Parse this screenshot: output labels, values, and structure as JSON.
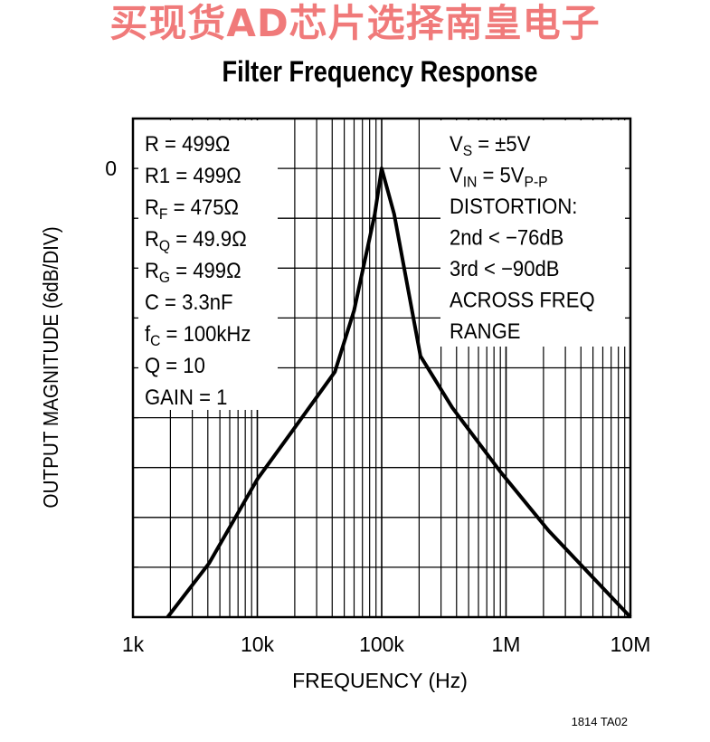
{
  "watermark": "买现货AD芯片选择南皇电子",
  "footer_code": "1814 TA02",
  "chart_data": {
    "type": "line",
    "title": "Filter Frequency Response",
    "xlabel": "FREQUENCY (Hz)",
    "ylabel": "OUTPUT MAGNITUDE (6dB/DIV)",
    "xscale": "log",
    "xlim": [
      1000,
      10000000
    ],
    "ylim": [
      -54,
      6
    ],
    "y_div_db": 6,
    "grid": true,
    "x_ticks": [
      {
        "value": 1000,
        "label": "1k"
      },
      {
        "value": 10000,
        "label": "10k"
      },
      {
        "value": 100000,
        "label": "100k"
      },
      {
        "value": 1000000,
        "label": "1M"
      },
      {
        "value": 10000000,
        "label": "10M"
      }
    ],
    "y_ticks": [
      {
        "value": 0,
        "label": "0"
      }
    ],
    "series": [
      {
        "name": "Output magnitude",
        "x": [
          1900,
          4100,
          10000,
          20000,
          42000,
          60000,
          88000,
          100000,
          126000,
          205000,
          370000,
          910000,
          2200000,
          5500000,
          10000000
        ],
        "y": [
          -54,
          -47.5,
          -37.4,
          -31.2,
          -24.5,
          -17.1,
          -5.5,
          0,
          -5.5,
          -22.6,
          -28.8,
          -36.6,
          -43.6,
          -49.9,
          -54
        ]
      }
    ],
    "annotations_left": [
      {
        "main": "R = 499Ω",
        "sub": "",
        "rest": ""
      },
      {
        "main": "R1 = 499Ω",
        "sub": "",
        "rest": ""
      },
      {
        "main": "R",
        "sub": "F",
        "rest": " = 475Ω"
      },
      {
        "main": "R",
        "sub": "Q",
        "rest": " = 49.9Ω"
      },
      {
        "main": "R",
        "sub": "G",
        "rest": " = 499Ω"
      },
      {
        "main": "C = 3.3nF",
        "sub": "",
        "rest": ""
      },
      {
        "main": "f",
        "sub": "C",
        "rest": " = 100kHz"
      },
      {
        "main": "Q = 10",
        "sub": "",
        "rest": ""
      },
      {
        "main": "GAIN = 1",
        "sub": "",
        "rest": ""
      }
    ],
    "annotations_right": [
      {
        "main": "V",
        "sub": "S",
        "rest": " = ±5V",
        "sub2": ""
      },
      {
        "main": "V",
        "sub": "IN",
        "rest": " = 5V",
        "sub2": "P-P"
      },
      {
        "main": "DISTORTION:",
        "sub": "",
        "rest": "",
        "sub2": ""
      },
      {
        "main": "  2nd < −76dB",
        "sub": "",
        "rest": "",
        "sub2": ""
      },
      {
        "main": "  3rd < −90dB",
        "sub": "",
        "rest": "",
        "sub2": ""
      },
      {
        "main": "  ACROSS FREQ",
        "sub": "",
        "rest": "",
        "sub2": ""
      },
      {
        "main": "  RANGE",
        "sub": "",
        "rest": "",
        "sub2": ""
      }
    ]
  }
}
